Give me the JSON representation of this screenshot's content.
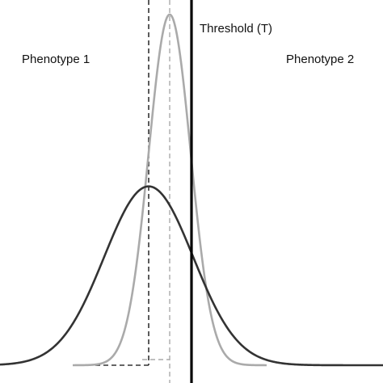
{
  "labels": {
    "threshold": "Threshold (T)",
    "left_region": "Phenotype 1",
    "right_region": "Phenotype 2"
  },
  "colors": {
    "wide_curve": "#333333",
    "narrow_curve": "#aaaaaa",
    "threshold_line": "#000000",
    "wide_mean_line": "#333333",
    "narrow_mean_line": "#aaaaaa",
    "background": "#ffffff"
  },
  "diagram": {
    "x_range": [
      0,
      474
    ],
    "wide_distribution": {
      "mean": 184,
      "sd": 55,
      "peak": 0.51
    },
    "narrow_distribution": {
      "mean": 210,
      "sd": 26,
      "peak": 1.0
    },
    "threshold": 237
  }
}
